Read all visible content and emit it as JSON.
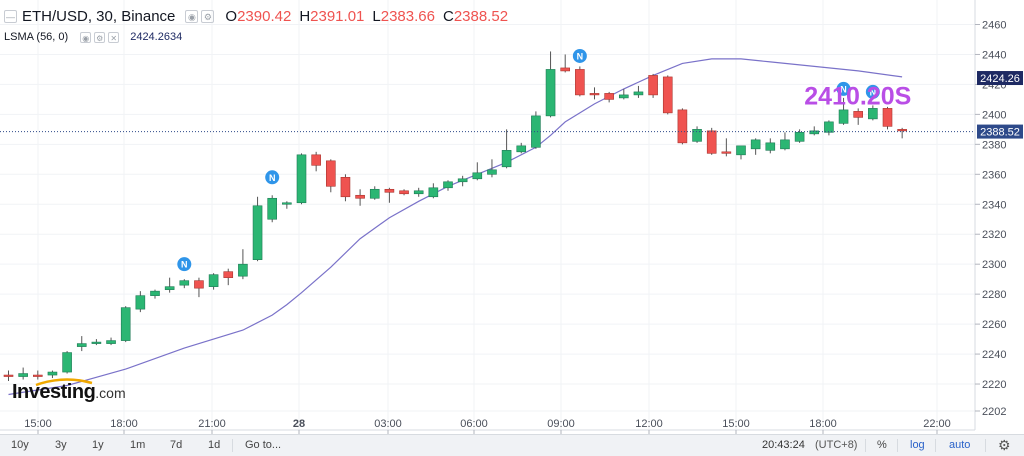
{
  "legend": {
    "symbol": "ETH/USD, 30, Binance",
    "open_label": "O",
    "open": "2390.42",
    "high_label": "H",
    "high": "2391.01",
    "low_label": "L",
    "low": "2383.66",
    "close_label": "C",
    "close": "2388.52",
    "indicator": "LSMA (56, 0)",
    "indicator_value": "2424.2634"
  },
  "annotation_text": "2410.20S",
  "badge_letter": "N",
  "bottom_bar": {
    "timeframes": [
      "10y",
      "3y",
      "1y",
      "1m",
      "7d",
      "1d"
    ],
    "goto": "Go to...",
    "time": "20:43:24",
    "timezone": "(UTC+8)",
    "percent": "%",
    "log": "log",
    "auto": "auto",
    "settings_icon": "gear-icon"
  },
  "logo": {
    "name": "Investing",
    "domain": ".com"
  },
  "colors": {
    "up": "#26a69a",
    "up_fill": "#2bb673",
    "down": "#ef5350",
    "lsma": "#7a72c9",
    "price_tag": "#1e2a63",
    "last_tag": "#2e4a8a",
    "annot": "#b94ee6",
    "badge": "#2f95e9"
  },
  "chart_data": {
    "type": "candlestick",
    "title": "ETH/USD, 30, Binance",
    "x_ticks": [
      "15:00",
      "18:00",
      "21:00",
      "28",
      "03:00",
      "06:00",
      "09:00",
      "12:00",
      "15:00",
      "18:00",
      "22:00"
    ],
    "y_ticks": [
      2460,
      2440,
      2420,
      2400,
      2380,
      2360,
      2340,
      2320,
      2300,
      2280,
      2260,
      2240,
      2220,
      2202
    ],
    "ylim": [
      2202,
      2465
    ],
    "candles": [
      {
        "o": 2226,
        "h": 2229,
        "l": 2222,
        "c": 2225
      },
      {
        "o": 2225,
        "h": 2231,
        "l": 2223,
        "c": 2227
      },
      {
        "o": 2226,
        "h": 2229,
        "l": 2223,
        "c": 2225
      },
      {
        "o": 2226,
        "h": 2229,
        "l": 2224,
        "c": 2228
      },
      {
        "o": 2228,
        "h": 2242,
        "l": 2227,
        "c": 2241
      },
      {
        "o": 2245,
        "h": 2252,
        "l": 2242,
        "c": 2247
      },
      {
        "o": 2247,
        "h": 2250,
        "l": 2246,
        "c": 2248
      },
      {
        "o": 2247,
        "h": 2251,
        "l": 2246,
        "c": 2249
      },
      {
        "o": 2249,
        "h": 2272,
        "l": 2248,
        "c": 2271
      },
      {
        "o": 2270,
        "h": 2282,
        "l": 2268,
        "c": 2279
      },
      {
        "o": 2279,
        "h": 2283,
        "l": 2277,
        "c": 2282
      },
      {
        "o": 2283,
        "h": 2291,
        "l": 2281,
        "c": 2285
      },
      {
        "o": 2286,
        "h": 2290,
        "l": 2284,
        "c": 2289
      },
      {
        "o": 2289,
        "h": 2291,
        "l": 2278,
        "c": 2284
      },
      {
        "o": 2285,
        "h": 2294,
        "l": 2283,
        "c": 2293
      },
      {
        "o": 2295,
        "h": 2297,
        "l": 2286,
        "c": 2291
      },
      {
        "o": 2292,
        "h": 2310,
        "l": 2290,
        "c": 2300
      },
      {
        "o": 2303,
        "h": 2345,
        "l": 2302,
        "c": 2339
      },
      {
        "o": 2330,
        "h": 2346,
        "l": 2328,
        "c": 2344
      },
      {
        "o": 2340,
        "h": 2342,
        "l": 2337,
        "c": 2341
      },
      {
        "o": 2341,
        "h": 2374,
        "l": 2340,
        "c": 2373
      },
      {
        "o": 2373,
        "h": 2375,
        "l": 2362,
        "c": 2366
      },
      {
        "o": 2369,
        "h": 2370,
        "l": 2348,
        "c": 2352
      },
      {
        "o": 2358,
        "h": 2360,
        "l": 2342,
        "c": 2345
      },
      {
        "o": 2346,
        "h": 2350,
        "l": 2339,
        "c": 2344
      },
      {
        "o": 2344,
        "h": 2352,
        "l": 2343,
        "c": 2350
      },
      {
        "o": 2350,
        "h": 2351,
        "l": 2341,
        "c": 2348
      },
      {
        "o": 2349,
        "h": 2350,
        "l": 2346,
        "c": 2347
      },
      {
        "o": 2347,
        "h": 2351,
        "l": 2345,
        "c": 2349
      },
      {
        "o": 2345,
        "h": 2354,
        "l": 2344,
        "c": 2351
      },
      {
        "o": 2351,
        "h": 2356,
        "l": 2349,
        "c": 2355
      },
      {
        "o": 2355,
        "h": 2359,
        "l": 2352,
        "c": 2357
      },
      {
        "o": 2357,
        "h": 2368,
        "l": 2356,
        "c": 2361
      },
      {
        "o": 2360,
        "h": 2370,
        "l": 2358,
        "c": 2363
      },
      {
        "o": 2365,
        "h": 2390,
        "l": 2364,
        "c": 2376
      },
      {
        "o": 2375,
        "h": 2381,
        "l": 2374,
        "c": 2379
      },
      {
        "o": 2378,
        "h": 2402,
        "l": 2377,
        "c": 2399
      },
      {
        "o": 2399,
        "h": 2442,
        "l": 2398,
        "c": 2430
      },
      {
        "o": 2431,
        "h": 2440,
        "l": 2428,
        "c": 2429
      },
      {
        "o": 2430,
        "h": 2432,
        "l": 2412,
        "c": 2413
      },
      {
        "o": 2414,
        "h": 2418,
        "l": 2410,
        "c": 2413
      },
      {
        "o": 2414,
        "h": 2415,
        "l": 2408,
        "c": 2410
      },
      {
        "o": 2411,
        "h": 2417,
        "l": 2410,
        "c": 2413
      },
      {
        "o": 2413,
        "h": 2419,
        "l": 2411,
        "c": 2415
      },
      {
        "o": 2426,
        "h": 2427,
        "l": 2411,
        "c": 2413
      },
      {
        "o": 2425,
        "h": 2426,
        "l": 2400,
        "c": 2401
      },
      {
        "o": 2403,
        "h": 2404,
        "l": 2380,
        "c": 2381
      },
      {
        "o": 2382,
        "h": 2392,
        "l": 2381,
        "c": 2390
      },
      {
        "o": 2389,
        "h": 2391,
        "l": 2373,
        "c": 2374
      },
      {
        "o": 2375,
        "h": 2384,
        "l": 2372,
        "c": 2374
      },
      {
        "o": 2373,
        "h": 2379,
        "l": 2370,
        "c": 2379
      },
      {
        "o": 2377,
        "h": 2384,
        "l": 2373,
        "c": 2383
      },
      {
        "o": 2376,
        "h": 2384,
        "l": 2374,
        "c": 2381
      },
      {
        "o": 2377,
        "h": 2388,
        "l": 2376,
        "c": 2383
      },
      {
        "o": 2382,
        "h": 2390,
        "l": 2381,
        "c": 2388
      },
      {
        "o": 2387,
        "h": 2392,
        "l": 2386,
        "c": 2389
      },
      {
        "o": 2388,
        "h": 2396,
        "l": 2386,
        "c": 2395
      },
      {
        "o": 2394,
        "h": 2411,
        "l": 2393,
        "c": 2403
      },
      {
        "o": 2402,
        "h": 2404,
        "l": 2393,
        "c": 2398
      },
      {
        "o": 2397,
        "h": 2406,
        "l": 2396,
        "c": 2404
      },
      {
        "o": 2404,
        "h": 2405,
        "l": 2390,
        "c": 2392
      },
      {
        "o": 2390,
        "h": 2391,
        "l": 2384,
        "c": 2389
      }
    ],
    "lsma": [
      [
        0,
        2213
      ],
      [
        4,
        2219
      ],
      [
        8,
        2230
      ],
      [
        12,
        2244
      ],
      [
        16,
        2256
      ],
      [
        18,
        2266
      ],
      [
        19,
        2273
      ],
      [
        20,
        2281
      ],
      [
        22,
        2298
      ],
      [
        24,
        2317
      ],
      [
        26,
        2331
      ],
      [
        28,
        2342
      ],
      [
        30,
        2352
      ],
      [
        32,
        2360
      ],
      [
        34,
        2368
      ],
      [
        36,
        2378
      ],
      [
        37,
        2386
      ],
      [
        38,
        2395
      ],
      [
        40,
        2407
      ],
      [
        42,
        2417
      ],
      [
        44,
        2426
      ],
      [
        46,
        2434
      ],
      [
        48,
        2437
      ],
      [
        50,
        2437
      ],
      [
        52,
        2435
      ],
      [
        54,
        2433
      ],
      [
        56,
        2431
      ],
      [
        58,
        2429
      ],
      [
        61,
        2425
      ]
    ],
    "badges": [
      {
        "i": 12,
        "price": 2300
      },
      {
        "i": 18,
        "price": 2358
      },
      {
        "i": 39,
        "price": 2439
      },
      {
        "i": 57,
        "price": 2417
      },
      {
        "i": 59,
        "price": 2415
      }
    ],
    "annotation": {
      "i": 55,
      "price": 2412
    }
  }
}
